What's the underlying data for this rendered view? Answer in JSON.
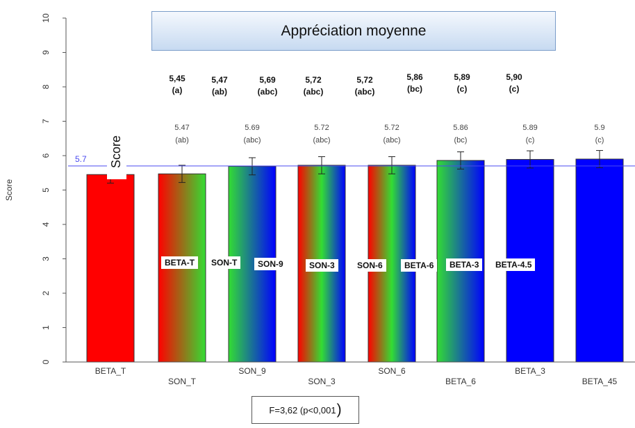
{
  "chart_data": {
    "type": "bar",
    "title": "Appréciation moyenne",
    "ylabel": "Score",
    "ylim": [
      0,
      10
    ],
    "yticks": [
      "0",
      "1",
      "2",
      "3",
      "4",
      "5",
      "6",
      "7",
      "8",
      "9",
      "10"
    ],
    "categories": [
      "BETA_T",
      "SON_T",
      "SON_9",
      "SON_3",
      "SON_6",
      "BETA_6",
      "BETA_3",
      "BETA_45"
    ],
    "values": [
      5.45,
      5.47,
      5.69,
      5.72,
      5.72,
      5.86,
      5.89,
      5.9
    ],
    "errors": [
      0.25,
      0.25,
      0.25,
      0.25,
      0.25,
      0.25,
      0.25,
      0.25
    ],
    "value_labels": [
      "",
      "5.47",
      "5.69",
      "5.72",
      "5.72",
      "5.86",
      "5.89",
      "5.9"
    ],
    "group_labels": [
      "",
      "(ab)",
      "(abc)",
      "(abc)",
      "(abc)",
      "(bc)",
      "(c)",
      "(c)"
    ],
    "bar_fills": [
      "red",
      "red-green",
      "green-blue",
      "red-green-blue",
      "red-green-blue",
      "green-blue",
      "blue",
      "blue"
    ],
    "mean_line": {
      "value": 5.7,
      "label": "5.7",
      "color": "#4a4af0"
    },
    "colors": {
      "red": "#ff0000",
      "green": "#33dd33",
      "blue": "#0000ff",
      "grid": "#bbbbbb"
    },
    "grid": false
  },
  "overlay": {
    "score_label": "Score",
    "annotations": [
      {
        "value": "5,45",
        "group": "(a)"
      },
      {
        "value": "5,47",
        "group": "(ab)"
      },
      {
        "value": "5,69",
        "group": "(abc)"
      },
      {
        "value": "5,72",
        "group": "(abc)"
      },
      {
        "value": "5,72",
        "group": "(abc)"
      },
      {
        "value": "5,86",
        "group": "(bc)"
      },
      {
        "value": "5,89",
        "group": "(c)"
      },
      {
        "value": "5,90",
        "group": "(c)"
      }
    ],
    "legend_labels": [
      "BETA-T",
      "SON-T",
      "SON-9",
      "SON-3",
      "SON-6",
      "BETA-6",
      "BETA-3",
      "BETA-4.5"
    ],
    "stat_text": "F=3,62 (p<0,001",
    "stat_paren": ")"
  }
}
